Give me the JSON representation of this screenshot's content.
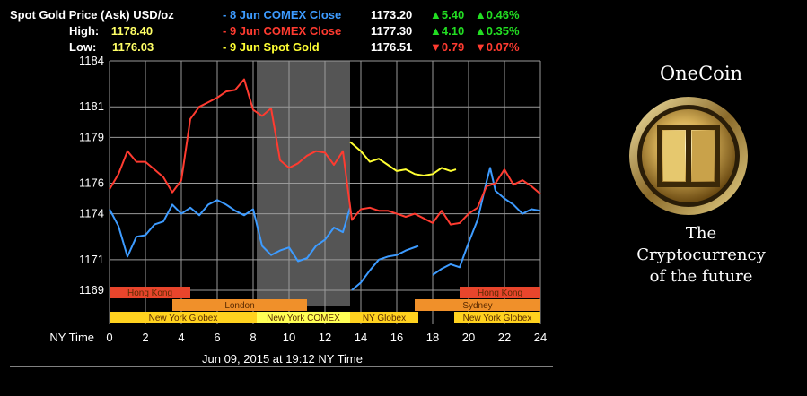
{
  "header": {
    "row1": {
      "label": "Spot Gold Price (Ask) USD/oz"
    },
    "row2": {
      "label": "High:",
      "value": "1178.40"
    },
    "row3": {
      "label": "Low:",
      "value": "1176.03"
    },
    "legend": [
      {
        "name": "8 Jun COMEX Close",
        "price": "1173.20",
        "change": "5.40",
        "pct": "0.46%",
        "dir": "up",
        "color": "#3d9bff"
      },
      {
        "name": "9 Jun COMEX Close",
        "price": "1177.30",
        "change": "4.10",
        "pct": "0.35%",
        "dir": "up",
        "color": "#ff3b30"
      },
      {
        "name": "9 Jun Spot Gold",
        "price": "1176.51",
        "change": "0.79",
        "pct": "0.07%",
        "dir": "down",
        "color": "#ffff33"
      }
    ],
    "up_arrow": "▲",
    "down_arrow": "▼",
    "dash": "-"
  },
  "timestamp": "Jun 09, 2015 at 19:12 NY Time",
  "ad": {
    "title": "OneCoin",
    "line1": "The",
    "line2": "Cryptocurrency",
    "line3": "of the future",
    "coin_color": "#c9a24a"
  },
  "chart_data": {
    "type": "line",
    "xlabel": "NY Time",
    "x_ticks": [
      "0",
      "2",
      "4",
      "6",
      "8",
      "10",
      "12",
      "14",
      "16",
      "18",
      "20",
      "22",
      "24"
    ],
    "y_ticks": [
      "1169",
      "1171",
      "1174",
      "1176",
      "1179",
      "1181",
      "1184"
    ],
    "xlim": [
      0,
      24
    ],
    "ylim": [
      1168,
      1184
    ],
    "grid": true,
    "shaded_region": [
      8.2,
      13.4
    ],
    "sessions": [
      {
        "name": "Hong Kong",
        "start": 0,
        "end": 4.5,
        "row": 0,
        "color": "#e8452c"
      },
      {
        "name": "Hong Kong",
        "start": 19.5,
        "end": 24,
        "row": 0,
        "color": "#e8452c"
      },
      {
        "name": "London",
        "start": 3.5,
        "end": 11,
        "row": 1,
        "color": "#f0902a"
      },
      {
        "name": "Sydney",
        "start": 17,
        "end": 24,
        "row": 1,
        "color": "#f0902a"
      },
      {
        "name": "New York Globex",
        "start": 0,
        "end": 8.2,
        "row": 2,
        "color": "#ffd21f"
      },
      {
        "name": "New York COMEX",
        "start": 8.2,
        "end": 13.4,
        "row": 2,
        "color": "#ffff55"
      },
      {
        "name": "NY Globex",
        "start": 13.4,
        "end": 17.2,
        "row": 2,
        "color": "#ffd21f"
      },
      {
        "name": "New York Globex",
        "start": 19.2,
        "end": 24,
        "row": 2,
        "color": "#ffd21f"
      }
    ],
    "series": [
      {
        "name": "8 Jun COMEX Close",
        "color": "#3d9bff",
        "x": [
          0,
          0.5,
          1,
          1.5,
          2,
          2.5,
          3,
          3.5,
          4,
          4.5,
          5,
          5.5,
          6,
          6.5,
          7,
          7.5,
          8,
          8.5,
          9,
          9.5,
          10,
          10.5,
          11,
          11.5,
          12,
          12.5,
          13,
          13.4
        ],
        "y": [
          1174.3,
          1173.2,
          1171.2,
          1172.5,
          1172.6,
          1173.3,
          1173.5,
          1174.6,
          1174.0,
          1174.4,
          1173.9,
          1174.6,
          1174.9,
          1174.6,
          1174.2,
          1173.9,
          1174.3,
          1171.9,
          1171.3,
          1171.6,
          1171.8,
          1170.9,
          1171.1,
          1171.9,
          1172.3,
          1173.1,
          1172.8,
          1174.4
        ]
      },
      {
        "name": "8 Jun COMEX Close (Globex)",
        "color": "#3d9bff",
        "x": [
          13.5,
          14,
          14.5,
          15,
          15.5,
          16,
          16.5,
          17.2
        ],
        "y": [
          1169.0,
          1169.5,
          1170.3,
          1171.0,
          1171.2,
          1171.3,
          1171.6,
          1171.9
        ]
      },
      {
        "name": "8 Jun COMEX Close (late)",
        "color": "#3d9bff",
        "x": [
          18,
          18.5,
          19,
          19.5,
          20,
          20.5,
          21,
          21.2,
          21.5,
          22,
          22.5,
          23,
          23.5,
          24
        ],
        "y": [
          1170.0,
          1170.4,
          1170.7,
          1170.5,
          1172.1,
          1173.6,
          1176.1,
          1177.0,
          1175.5,
          1175.0,
          1174.6,
          1174.0,
          1174.3,
          1174.2
        ]
      },
      {
        "name": "9 Jun COMEX Close",
        "color": "#ff3b30",
        "x": [
          0,
          0.5,
          1,
          1.5,
          2,
          2.5,
          3,
          3.5,
          4,
          4.5,
          5,
          5.5,
          6,
          6.5,
          7,
          7.5,
          8,
          8.5,
          9,
          9.5,
          10,
          10.5,
          11,
          11.5,
          12,
          12.5,
          13,
          13.5,
          14,
          14.5,
          15,
          15.5,
          16,
          16.5,
          17,
          17.5,
          18,
          18.5,
          19,
          19.5,
          20,
          20.5,
          21,
          21.5,
          22,
          22.5,
          23,
          23.5,
          24
        ],
        "y": [
          1175.6,
          1176.6,
          1178.1,
          1177.4,
          1177.4,
          1176.9,
          1176.4,
          1175.4,
          1176.2,
          1180.2,
          1181.0,
          1181.3,
          1181.6,
          1182.0,
          1182.1,
          1182.8,
          1180.8,
          1180.4,
          1180.9,
          1177.5,
          1177.0,
          1177.3,
          1177.8,
          1178.1,
          1178.0,
          1177.2,
          1178.1,
          1173.6,
          1174.3,
          1174.4,
          1174.2,
          1174.2,
          1174.0,
          1173.8,
          1174.0,
          1173.7,
          1173.4,
          1174.2,
          1173.3,
          1173.4,
          1174.0,
          1174.4,
          1175.8,
          1176.0,
          1176.9,
          1175.9,
          1176.2,
          1175.8,
          1175.3
        ]
      },
      {
        "name": "9 Jun Spot Gold",
        "color": "#ffff33",
        "x": [
          13.4,
          14,
          14.5,
          15,
          15.5,
          16,
          16.5,
          17,
          17.5,
          18,
          18.5,
          19,
          19.3
        ],
        "y": [
          1178.7,
          1178.1,
          1177.4,
          1177.6,
          1177.2,
          1176.8,
          1176.9,
          1176.6,
          1176.5,
          1176.6,
          1177.0,
          1176.8,
          1176.9
        ]
      }
    ]
  }
}
